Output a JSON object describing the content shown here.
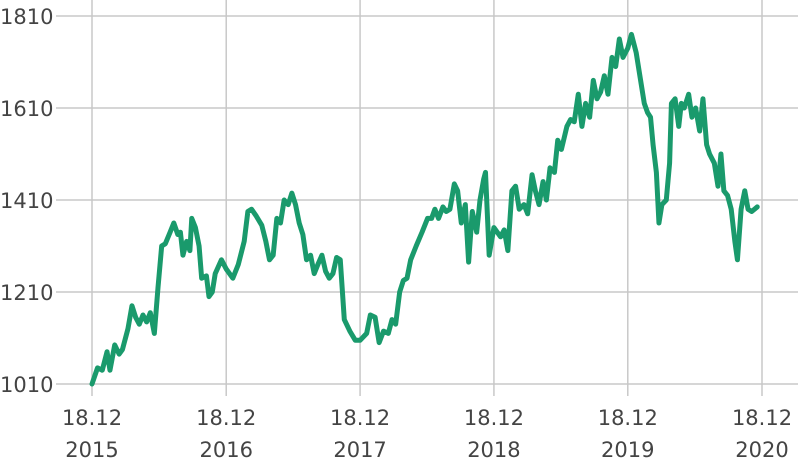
{
  "chart_data": {
    "type": "line",
    "x": [
      "2015-12-18",
      "2016-01-02",
      "2016-01-15",
      "2016-01-28",
      "2016-02-05",
      "2016-02-18",
      "2016-03-01",
      "2016-03-10",
      "2016-03-25",
      "2016-04-05",
      "2016-04-15",
      "2016-04-25",
      "2016-05-05",
      "2016-05-15",
      "2016-05-25",
      "2016-06-05",
      "2016-06-15",
      "2016-06-25",
      "2016-07-05",
      "2016-07-18",
      "2016-07-28",
      "2016-08-08",
      "2016-08-15",
      "2016-08-22",
      "2016-09-01",
      "2016-09-10",
      "2016-09-15",
      "2016-09-25",
      "2016-10-05",
      "2016-10-12",
      "2016-10-25",
      "2016-11-01",
      "2016-11-10",
      "2016-11-18",
      "2016-12-05",
      "2016-12-18",
      "2017-01-05",
      "2017-01-20",
      "2017-02-05",
      "2017-02-15",
      "2017-02-25",
      "2017-03-10",
      "2017-03-25",
      "2017-04-05",
      "2017-04-15",
      "2017-04-25",
      "2017-05-05",
      "2017-05-15",
      "2017-05-25",
      "2017-06-05",
      "2017-06-15",
      "2017-06-25",
      "2017-07-05",
      "2017-07-15",
      "2017-07-25",
      "2017-08-05",
      "2017-08-15",
      "2017-08-25",
      "2017-09-05",
      "2017-09-15",
      "2017-09-25",
      "2017-10-05",
      "2017-10-15",
      "2017-10-25",
      "2017-11-05",
      "2017-11-20",
      "2017-12-05",
      "2017-12-18",
      "2018-01-05",
      "2018-01-15",
      "2018-01-28",
      "2018-02-08",
      "2018-02-20",
      "2018-03-05",
      "2018-03-15",
      "2018-03-25",
      "2018-04-05",
      "2018-04-15",
      "2018-04-25",
      "2018-05-05",
      "2018-05-20",
      "2018-06-05",
      "2018-06-20",
      "2018-07-01",
      "2018-07-10",
      "2018-07-20",
      "2018-08-01",
      "2018-08-10",
      "2018-08-20",
      "2018-09-01",
      "2018-09-10",
      "2018-09-20",
      "2018-10-01",
      "2018-10-10",
      "2018-10-20",
      "2018-11-01",
      "2018-11-10",
      "2018-11-20",
      "2018-11-25",
      "2018-12-05",
      "2018-12-18",
      "2019-01-05",
      "2019-01-15",
      "2019-01-25",
      "2019-02-05",
      "2019-02-15",
      "2019-02-25",
      "2019-03-10",
      "2019-03-20",
      "2019-04-01",
      "2019-04-10",
      "2019-04-20",
      "2019-05-01",
      "2019-05-10",
      "2019-05-20",
      "2019-06-01",
      "2019-06-10",
      "2019-06-20",
      "2019-07-05",
      "2019-07-15",
      "2019-07-25",
      "2019-08-05",
      "2019-08-15",
      "2019-08-25",
      "2019-09-05",
      "2019-09-15",
      "2019-09-25",
      "2019-10-05",
      "2019-10-15",
      "2019-10-25",
      "2019-11-05",
      "2019-11-15",
      "2019-11-25",
      "2019-12-05",
      "2019-12-18",
      "2019-12-28",
      "2020-01-10",
      "2020-01-20",
      "2020-02-01",
      "2020-02-10",
      "2020-02-18",
      "2020-02-25",
      "2020-03-05",
      "2020-03-12",
      "2020-03-20",
      "2020-04-01",
      "2020-04-10",
      "2020-04-15",
      "2020-04-25",
      "2020-05-05",
      "2020-05-12",
      "2020-05-20",
      "2020-06-01",
      "2020-06-10",
      "2020-06-20",
      "2020-07-01",
      "2020-07-10",
      "2020-07-20",
      "2020-07-28",
      "2020-08-10",
      "2020-08-20",
      "2020-08-28",
      "2020-09-05",
      "2020-09-15",
      "2020-09-25",
      "2020-10-05",
      "2020-10-12",
      "2020-10-22",
      "2020-11-01",
      "2020-11-10",
      "2020-11-20",
      "2020-12-05"
    ],
    "series": [
      {
        "color": "#1a9a6c",
        "values": [
          1010,
          1045,
          1040,
          1080,
          1040,
          1095,
          1075,
          1085,
          1130,
          1180,
          1155,
          1140,
          1160,
          1145,
          1165,
          1120,
          1220,
          1310,
          1315,
          1340,
          1360,
          1335,
          1340,
          1290,
          1320,
          1300,
          1370,
          1350,
          1310,
          1240,
          1245,
          1200,
          1210,
          1250,
          1280,
          1260,
          1240,
          1270,
          1320,
          1385,
          1390,
          1375,
          1355,
          1320,
          1280,
          1290,
          1370,
          1360,
          1410,
          1400,
          1425,
          1400,
          1360,
          1335,
          1280,
          1290,
          1250,
          1270,
          1290,
          1255,
          1240,
          1250,
          1285,
          1280,
          1150,
          1125,
          1105,
          1105,
          1120,
          1160,
          1155,
          1100,
          1125,
          1120,
          1150,
          1140,
          1210,
          1235,
          1240,
          1280,
          1310,
          1340,
          1370,
          1370,
          1390,
          1370,
          1395,
          1385,
          1390,
          1445,
          1430,
          1360,
          1400,
          1275,
          1385,
          1340,
          1410,
          1455,
          1470,
          1290,
          1350,
          1330,
          1345,
          1300,
          1430,
          1440,
          1390,
          1400,
          1380,
          1465,
          1430,
          1400,
          1450,
          1410,
          1480,
          1470,
          1540,
          1520,
          1570,
          1585,
          1580,
          1640,
          1570,
          1620,
          1590,
          1670,
          1630,
          1645,
          1680,
          1640,
          1720,
          1700,
          1760,
          1720,
          1740,
          1770,
          1730,
          1680,
          1620,
          1600,
          1590,
          1530,
          1470,
          1360,
          1400,
          1410,
          1490,
          1620,
          1630,
          1570,
          1620,
          1610,
          1640,
          1590,
          1610,
          1560,
          1630,
          1530,
          1510,
          1490,
          1440,
          1510,
          1430,
          1420,
          1390,
          1320,
          1280,
          1390,
          1430,
          1390,
          1385,
          1395
        ]
      }
    ],
    "xlim": [
      "2015-12-18",
      "2020-12-18"
    ],
    "xticks": [
      {
        "value": "2015-12-18",
        "label": "18.12 2015"
      },
      {
        "value": "2016-12-18",
        "label": "18.12 2016"
      },
      {
        "value": "2017-12-18",
        "label": "18.12 2017"
      },
      {
        "value": "2018-12-18",
        "label": "18.12 2018"
      },
      {
        "value": "2019-12-18",
        "label": "18.12 2019"
      },
      {
        "value": "2020-12-18",
        "label": "18.12 2020"
      }
    ],
    "ylim": [
      1010,
      1810
    ],
    "yticks": [
      1010,
      1210,
      1410,
      1610,
      1810
    ],
    "grid": true
  }
}
